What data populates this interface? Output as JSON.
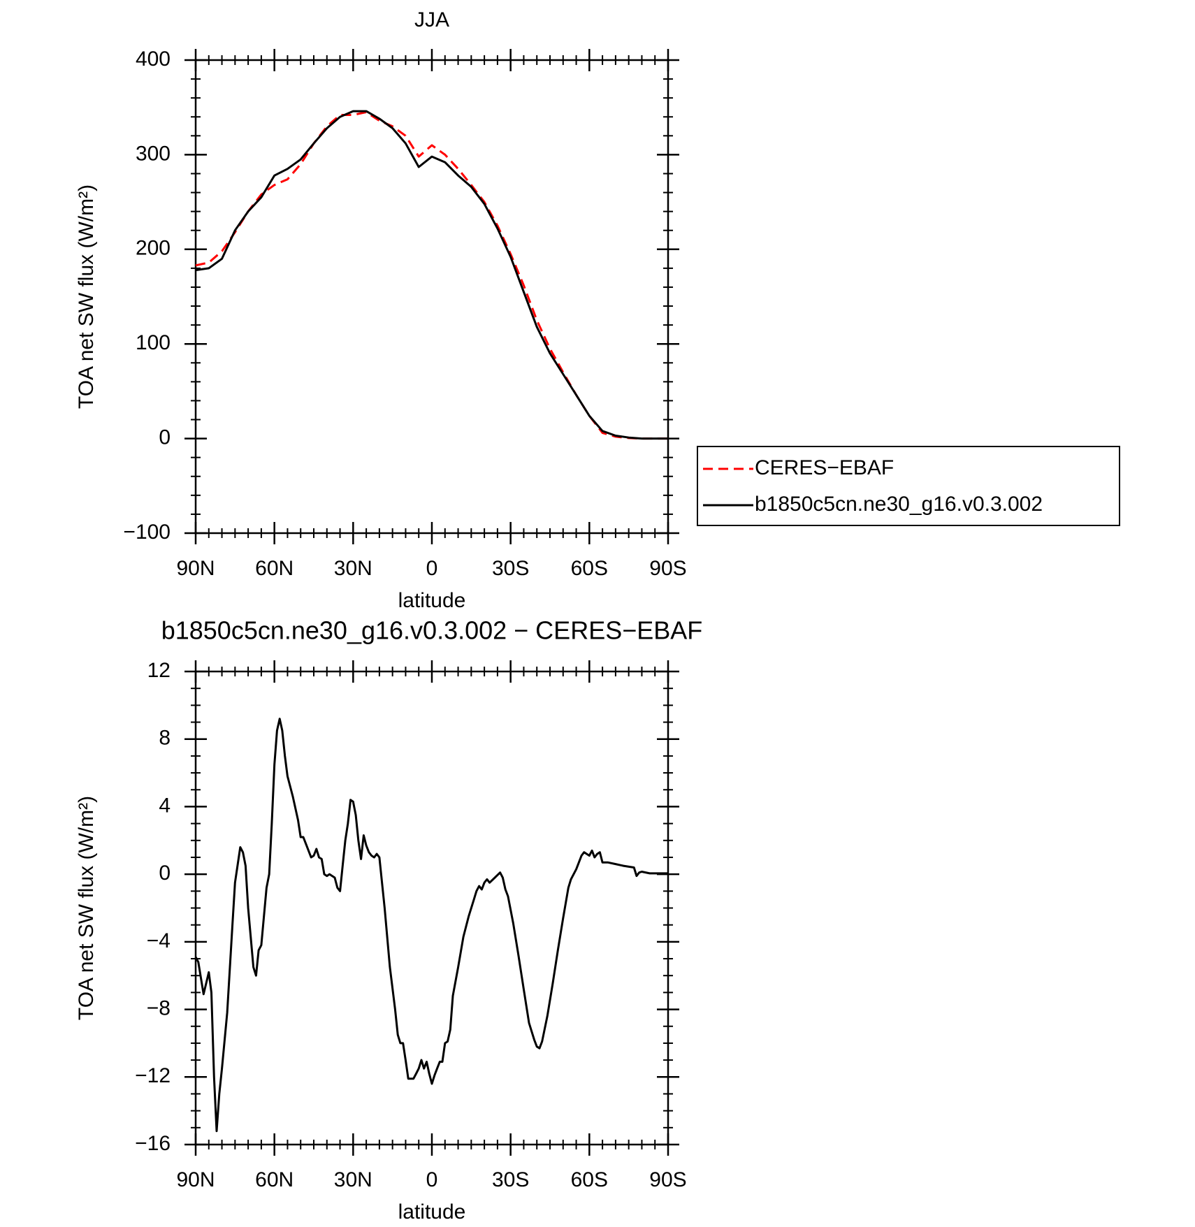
{
  "chart_data": [
    {
      "type": "line",
      "title": "JJA",
      "xlabel": "latitude",
      "ylabel": "TOA net SW flux (W/m²)",
      "x": [
        90,
        85,
        80,
        75,
        70,
        65,
        60,
        55,
        50,
        45,
        40,
        35,
        30,
        25,
        20,
        15,
        10,
        5,
        0,
        -5,
        -10,
        -15,
        -20,
        -25,
        -30,
        -35,
        -40,
        -45,
        -50,
        -55,
        -60,
        -65,
        -70,
        -75,
        -80,
        -85,
        -90
      ],
      "series": [
        {
          "name": "CERES−EBAF",
          "color": "#ff0000",
          "line_style": "dashed",
          "values": [
            183,
            186,
            198,
            218,
            240,
            258,
            268,
            274,
            290,
            312,
            330,
            342,
            342,
            345,
            336,
            330,
            320,
            298,
            310,
            300,
            285,
            268,
            250,
            225,
            195,
            162,
            125,
            95,
            70,
            46,
            24,
            6,
            2,
            0.5,
            0,
            0,
            0
          ]
        },
        {
          "name": "b1850c5cn.ne30_g16.v0.3.002",
          "color": "#000000",
          "line_style": "solid",
          "values": [
            178,
            180,
            190,
            220,
            240,
            255,
            278,
            285,
            295,
            312,
            328,
            340,
            346,
            346,
            338,
            328,
            312,
            287,
            298,
            292,
            278,
            266,
            248,
            222,
            192,
            155,
            118,
            90,
            68,
            46,
            24,
            8,
            3,
            1,
            0,
            0,
            0
          ]
        }
      ],
      "xlim": [
        90,
        -90
      ],
      "xticks": [
        {
          "value": 90,
          "label": "90N"
        },
        {
          "value": 60,
          "label": "60N"
        },
        {
          "value": 30,
          "label": "30N"
        },
        0,
        {
          "value": -30,
          "label": "30S"
        },
        {
          "value": -60,
          "label": "60S"
        },
        {
          "value": -90,
          "label": "90S"
        }
      ],
      "ylim": [
        -100,
        400
      ],
      "yticks": [
        {
          "value": -100,
          "label": "−100"
        },
        0,
        100,
        200,
        300,
        400
      ],
      "legend": "right"
    },
    {
      "type": "line",
      "title": "b1850c5cn.ne30_g16.v0.3.002 − CERES−EBAF",
      "xlabel": "latitude",
      "ylabel": "TOA net SW flux (W/m²)",
      "x": [
        90,
        89,
        87,
        85,
        84,
        83,
        82,
        81,
        80,
        78,
        76,
        75,
        73,
        72,
        71,
        70,
        68,
        67,
        66,
        65,
        63,
        62,
        61,
        60,
        59,
        58,
        57,
        56,
        55,
        53,
        51,
        50,
        49,
        48,
        46,
        45,
        44,
        43,
        42,
        41,
        40,
        39,
        38,
        37,
        36,
        35,
        34,
        33,
        32,
        31,
        30,
        29,
        28,
        27,
        26,
        25,
        24,
        23,
        22,
        21,
        20,
        18,
        16,
        14,
        13,
        12,
        11,
        10,
        9,
        7,
        6,
        5,
        4,
        3,
        2,
        1,
        0,
        -1,
        -2,
        -3,
        -4,
        -5,
        -6,
        -7,
        -8,
        -10,
        -12,
        -14,
        -16,
        -17,
        -18,
        -19,
        -20,
        -21,
        -22,
        -24,
        -26,
        -27,
        -28,
        -29,
        -31,
        -33,
        -35,
        -37,
        -39,
        -40,
        -41,
        -42,
        -44,
        -46,
        -48,
        -50,
        -52,
        -53,
        -55,
        -57,
        -58,
        -59,
        -60,
        -61,
        -62,
        -63,
        -64,
        -65,
        -67,
        -70,
        -73,
        -77,
        -78,
        -79,
        -80,
        -83,
        -90
      ],
      "color": "#000000",
      "values": [
        -4.9,
        -5.2,
        -7.1,
        -5.8,
        -7,
        -12,
        -15.2,
        -13,
        -11.5,
        -8.2,
        -3,
        -0.5,
        1.6,
        1.3,
        0.5,
        -2,
        -5.5,
        -6,
        -4.5,
        -4.2,
        -0.8,
        0,
        3,
        6.5,
        8.5,
        9.2,
        8.5,
        7,
        5.8,
        4.6,
        3.2,
        2.2,
        2.2,
        1.8,
        1.0,
        1.1,
        1.5,
        1.0,
        0.9,
        0,
        -0.1,
        0,
        -0.1,
        -0.2,
        -0.8,
        -1,
        0.5,
        2,
        3,
        4.4,
        4.3,
        3.5,
        2,
        0.9,
        2.3,
        1.7,
        1.3,
        1.1,
        1.0,
        1.2,
        1.0,
        -2,
        -5.5,
        -8,
        -9.5,
        -10,
        -10,
        -11,
        -12.1,
        -12.1,
        -11.8,
        -11.5,
        -11.0,
        -11.5,
        -11.1,
        -11.8,
        -12.4,
        -11.9,
        -11.5,
        -11.1,
        -11.1,
        -10.0,
        -9.9,
        -9.2,
        -7.2,
        -5.5,
        -3.7,
        -2.5,
        -1.5,
        -1.0,
        -0.7,
        -0.9,
        -0.5,
        -0.3,
        -0.5,
        -0.2,
        0.1,
        -0.2,
        -0.9,
        -1.3,
        -2.9,
        -4.8,
        -6.8,
        -8.8,
        -9.8,
        -10.2,
        -10.3,
        -9.9,
        -8.4,
        -6.5,
        -4.5,
        -2.6,
        -0.8,
        -0.3,
        0.3,
        1.1,
        1.3,
        1.2,
        1.1,
        1.4,
        1.0,
        1.2,
        1.3,
        0.7,
        0.7,
        0.6,
        0.5,
        0.4,
        -0.1,
        0.1,
        0.15,
        0.05,
        0.05
      ],
      "xlim": [
        90,
        -90
      ],
      "xticks": [
        {
          "value": 90,
          "label": "90N"
        },
        {
          "value": 60,
          "label": "60N"
        },
        {
          "value": 30,
          "label": "30N"
        },
        0,
        {
          "value": -30,
          "label": "30S"
        },
        {
          "value": -60,
          "label": "60S"
        },
        {
          "value": -90,
          "label": "90S"
        }
      ],
      "ylim": [
        -16,
        12
      ],
      "yticks": [
        {
          "value": -16,
          "label": "−16"
        },
        {
          "value": -12,
          "label": "−12"
        },
        {
          "value": -8,
          "label": "−8"
        },
        {
          "value": -4,
          "label": "−4"
        },
        0,
        4,
        8,
        12
      ]
    }
  ]
}
